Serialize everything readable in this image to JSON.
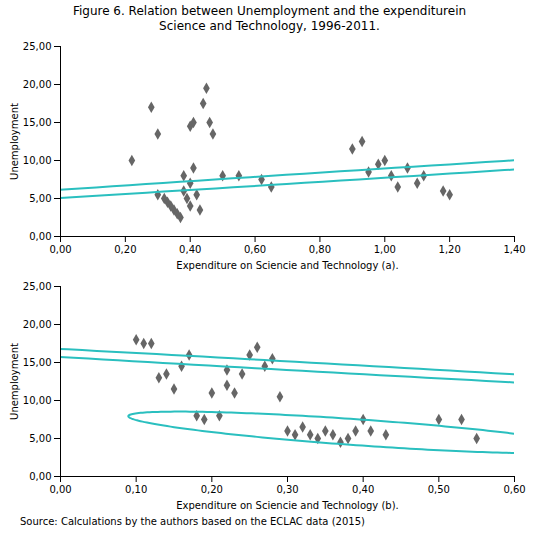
{
  "title": "Figure 6. Relation between Unemployment and the expenditurein",
  "subtitle": "Science and Technology, 1996-2011.",
  "source": "Source: Calculations by the authors based on the ECLAC data (2015)",
  "chart_data": [
    {
      "type": "scatter",
      "xlabel": "Expenditure on Sciencie and Technology (a).",
      "ylabel": "Unemployment",
      "xlim": [
        0.0,
        1.4
      ],
      "ylim": [
        0.0,
        25.0
      ],
      "xticks": [
        {
          "value": 0.0,
          "label": "0,00"
        },
        {
          "value": 0.2,
          "label": "0,20"
        },
        {
          "value": 0.4,
          "label": "0,40"
        },
        {
          "value": 0.6,
          "label": "0,60"
        },
        {
          "value": 0.8,
          "label": "0,80"
        },
        {
          "value": 1.0,
          "label": "1,00"
        },
        {
          "value": 1.2,
          "label": "1,20"
        },
        {
          "value": 1.4,
          "label": "1,40"
        }
      ],
      "yticks": [
        {
          "value": 0.0,
          "label": "0,00"
        },
        {
          "value": 5.0,
          "label": "5,00"
        },
        {
          "value": 10.0,
          "label": "10,00"
        },
        {
          "value": 15.0,
          "label": "15,00"
        },
        {
          "value": 20.0,
          "label": "20,00"
        },
        {
          "value": 25.0,
          "label": "25,00"
        }
      ],
      "x": [
        0.22,
        0.28,
        0.3,
        0.3,
        0.32,
        0.33,
        0.34,
        0.35,
        0.36,
        0.37,
        0.38,
        0.38,
        0.39,
        0.4,
        0.4,
        0.4,
        0.41,
        0.41,
        0.42,
        0.43,
        0.44,
        0.45,
        0.46,
        0.47,
        0.5,
        0.55,
        0.62,
        0.65,
        0.9,
        0.93,
        0.95,
        0.98,
        1.0,
        1.02,
        1.04,
        1.07,
        1.1,
        1.12,
        1.18,
        1.2
      ],
      "values": [
        10.0,
        17.0,
        5.5,
        13.5,
        5.0,
        4.5,
        4.0,
        3.5,
        3.0,
        2.5,
        6.0,
        8.0,
        5.0,
        4.0,
        7.0,
        14.5,
        9.0,
        15.0,
        5.5,
        3.5,
        17.5,
        19.5,
        15.0,
        13.5,
        8.0,
        8.0,
        7.5,
        6.5,
        11.5,
        12.5,
        8.5,
        9.5,
        10.0,
        8.0,
        6.5,
        9.0,
        7.0,
        8.0,
        6.0,
        5.5
      ],
      "color": "#666666",
      "marker": "diamond",
      "grid": false,
      "ellipses": [
        {
          "center_x": 1.06,
          "center_y": 8.5,
          "width": 0.42,
          "height": 12.5,
          "angle": -20,
          "color": "#2ABFBF"
        }
      ]
    },
    {
      "type": "scatter",
      "xlabel": "Expenditure on Sciencie and Technology (b).",
      "ylabel": "Unemployment",
      "xlim": [
        0.0,
        0.6
      ],
      "ylim": [
        0.0,
        25.0
      ],
      "xticks": [
        {
          "value": 0.0,
          "label": "0,00"
        },
        {
          "value": 0.1,
          "label": "0,10"
        },
        {
          "value": 0.2,
          "label": "0,20"
        },
        {
          "value": 0.3,
          "label": "0,30"
        },
        {
          "value": 0.4,
          "label": "0,40"
        },
        {
          "value": 0.5,
          "label": "0,50"
        },
        {
          "value": 0.6,
          "label": "0,60"
        }
      ],
      "yticks": [
        {
          "value": 0.0,
          "label": "0,00"
        },
        {
          "value": 5.0,
          "label": "5,00"
        },
        {
          "value": 10.0,
          "label": "10,00"
        },
        {
          "value": 15.0,
          "label": "15,00"
        },
        {
          "value": 20.0,
          "label": "20,00"
        },
        {
          "value": 25.0,
          "label": "25,00"
        }
      ],
      "x": [
        0.1,
        0.11,
        0.12,
        0.13,
        0.14,
        0.15,
        0.16,
        0.17,
        0.18,
        0.19,
        0.2,
        0.21,
        0.22,
        0.22,
        0.23,
        0.24,
        0.25,
        0.26,
        0.27,
        0.28,
        0.29,
        0.3,
        0.31,
        0.32,
        0.33,
        0.34,
        0.35,
        0.36,
        0.37,
        0.38,
        0.39,
        0.4,
        0.41,
        0.43,
        0.5,
        0.53,
        0.55
      ],
      "values": [
        18.0,
        17.5,
        17.5,
        13.0,
        13.5,
        11.5,
        14.5,
        16.0,
        8.0,
        7.5,
        11.0,
        8.0,
        14.0,
        12.0,
        11.0,
        13.5,
        16.0,
        17.0,
        14.5,
        15.5,
        10.5,
        6.0,
        5.5,
        6.5,
        5.5,
        5.0,
        6.0,
        5.5,
        4.5,
        5.0,
        6.0,
        7.5,
        6.0,
        5.5,
        7.5,
        7.5,
        5.0
      ],
      "color": "#666666",
      "marker": "diamond",
      "grid": false,
      "ellipses": [
        {
          "center_x": 0.315,
          "center_y": 14.5,
          "width": 0.2,
          "height": 9.0,
          "angle": 10,
          "color": "#2ABFBF"
        },
        {
          "center_x": 0.395,
          "center_y": 5.8,
          "width": 0.38,
          "height": 5.5,
          "angle": 5,
          "color": "#2ABFBF"
        }
      ]
    }
  ]
}
